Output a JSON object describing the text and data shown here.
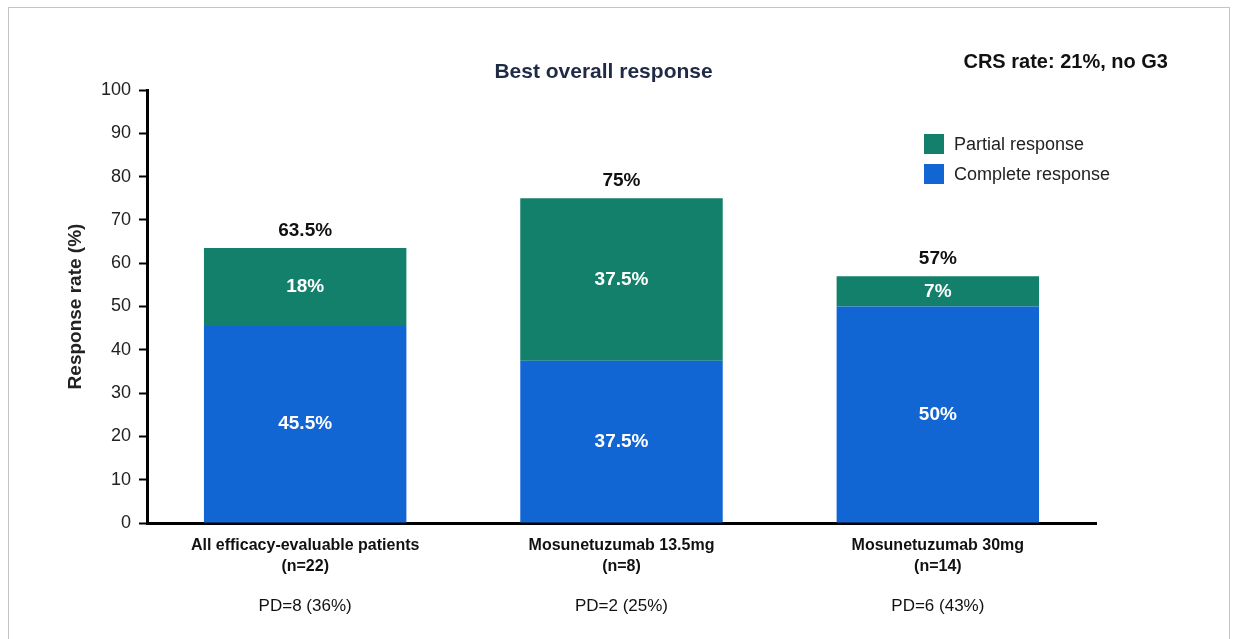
{
  "chart_data": {
    "type": "bar",
    "title": "Best overall response",
    "ylabel": "Response rate (%)",
    "categories": [
      "All efficacy-evaluable patients\n(n=22)",
      "Mosunetuzumab 13.5mg\n(n=8)",
      "Mosunetuzumab 30mg\n(n=14)"
    ],
    "stacked": true,
    "series": [
      {
        "name": "Complete response",
        "color": "#1266d4",
        "values": [
          45.5,
          37.5,
          50
        ],
        "value_labels": [
          "45.5%",
          "37.5%",
          "50%"
        ]
      },
      {
        "name": "Partial response",
        "color": "#12806a",
        "values": [
          18,
          37.5,
          7
        ],
        "value_labels": [
          "18%",
          "37.5%",
          "7%"
        ]
      }
    ],
    "totals": [
      "63.5%",
      "75%",
      "57%"
    ],
    "ylim": [
      0,
      100
    ],
    "yticks": [
      0,
      10,
      20,
      30,
      40,
      50,
      60,
      70,
      80,
      90,
      100
    ],
    "grid": false,
    "legend": "top right",
    "annotations": [
      "CRS rate: 21%, no G3",
      "PD=8 (36%)",
      "PD=2 (25%)",
      "PD=6 (43%)"
    ]
  }
}
